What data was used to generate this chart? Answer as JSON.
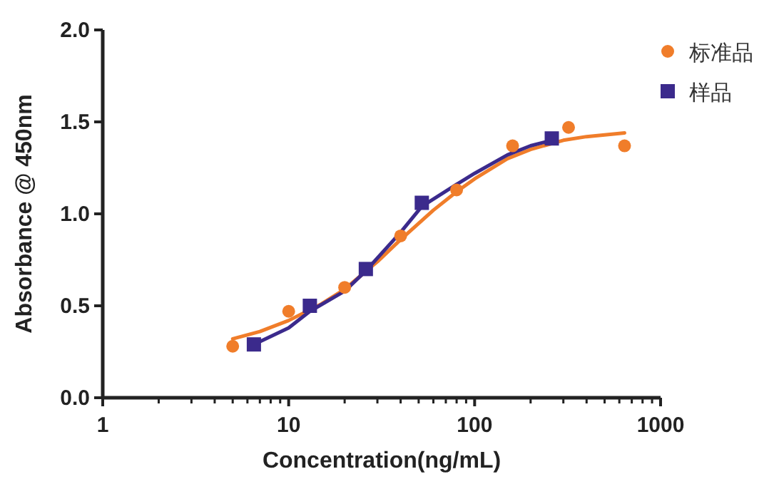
{
  "chart_data": {
    "type": "scatter",
    "xlabel": "Concentration(ng/mL)",
    "ylabel": "Absorbance @ 450nm",
    "log": "x",
    "xlim": [
      1,
      1000
    ],
    "xticks": [
      1,
      10,
      100,
      1000
    ],
    "ylim": [
      0,
      2
    ],
    "yticks": [
      {
        "value": 0,
        "label": "0.0"
      },
      {
        "value": 0.5,
        "label": "0.5"
      },
      {
        "value": 1,
        "label": "1.0"
      },
      {
        "value": 1.5,
        "label": "1.5"
      },
      {
        "value": 2,
        "label": "2.0"
      }
    ],
    "grid": false,
    "legend": "top right",
    "series": [
      {
        "type": "line",
        "color": "#f07d2a",
        "marker": "none",
        "x": [
          5,
          7,
          10,
          15,
          20,
          30,
          40,
          60,
          80,
          100,
          150,
          200,
          300,
          400,
          640
        ],
        "values": [
          0.32,
          0.36,
          0.42,
          0.51,
          0.59,
          0.74,
          0.86,
          1.02,
          1.12,
          1.19,
          1.3,
          1.35,
          1.4,
          1.42,
          1.44
        ]
      },
      {
        "type": "line",
        "color": "#3b2a8c",
        "marker": "none",
        "x": [
          6.5,
          10,
          13,
          20,
          26,
          40,
          52,
          80,
          100,
          150,
          200,
          260
        ],
        "values": [
          0.29,
          0.38,
          0.47,
          0.58,
          0.69,
          0.9,
          1.04,
          1.16,
          1.22,
          1.32,
          1.37,
          1.4
        ]
      },
      {
        "type": "scatter",
        "name": "标准品",
        "color": "#f07d2a",
        "marker": "circle",
        "x": [
          5,
          10,
          20,
          40,
          80,
          160,
          320,
          640
        ],
        "values": [
          0.28,
          0.47,
          0.6,
          0.88,
          1.13,
          1.37,
          1.47,
          1.37
        ]
      },
      {
        "type": "scatter",
        "name": "样品",
        "color": "#3b2a8c",
        "marker": "square",
        "x": [
          6.5,
          13,
          26,
          52,
          260
        ],
        "values": [
          0.29,
          0.5,
          0.7,
          1.06,
          1.41
        ]
      }
    ]
  }
}
